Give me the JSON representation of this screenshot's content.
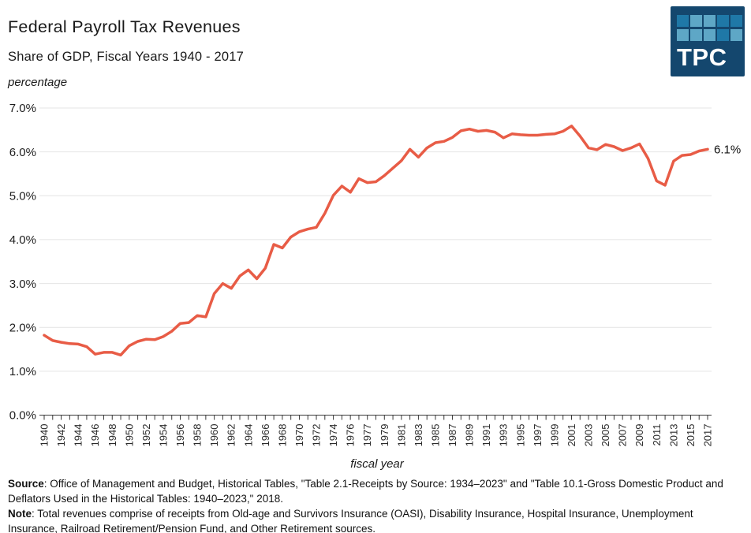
{
  "header": {
    "title": "Federal Payroll Tax Revenues",
    "subtitle": "Share of GDP, Fiscal Years 1940 - 2017"
  },
  "logo": {
    "text": "TPC",
    "bg_color": "#14476E",
    "square_colors": {
      "m": "#1F78A7",
      "l": "#5EA7C6"
    },
    "grid": [
      [
        "m",
        "l",
        "l",
        "m",
        "m"
      ],
      [
        "l",
        "l",
        "l",
        "m",
        "l"
      ]
    ]
  },
  "chart_data": {
    "type": "line",
    "title": "Federal Payroll Tax Revenues",
    "subtitle": "Share of GDP, Fiscal Years 1940 - 2017",
    "ylabel": "percentage",
    "xlabel": "fiscal year",
    "line_color": "#E85C46",
    "grid": "horizontal",
    "legend": "none",
    "ylim": [
      0,
      7
    ],
    "y_tick_labels": [
      "0.0%",
      "1.0%",
      "2.0%",
      "3.0%",
      "4.0%",
      "5.0%",
      "6.0%",
      "7.0%"
    ],
    "x": [
      "1940",
      "1941",
      "1942",
      "1943",
      "1944",
      "1945",
      "1946",
      "1947",
      "1948",
      "1949",
      "1950",
      "1951",
      "1952",
      "1953",
      "1954",
      "1955",
      "1956",
      "1957",
      "1958",
      "1959",
      "1960",
      "1961",
      "1962",
      "1963",
      "1964",
      "1965",
      "1966",
      "1967",
      "1968",
      "1969",
      "1970",
      "1971",
      "1972",
      "1973",
      "1974",
      "1975",
      "1976",
      "TQ",
      "1977",
      "1978",
      "1979",
      "1980",
      "1981",
      "1982",
      "1983",
      "1984",
      "1985",
      "1986",
      "1987",
      "1988",
      "1989",
      "1990",
      "1991",
      "1992",
      "1993",
      "1994",
      "1995",
      "1996",
      "1997",
      "1998",
      "1999",
      "2000",
      "2001",
      "2002",
      "2003",
      "2004",
      "2005",
      "2006",
      "2007",
      "2008",
      "2009",
      "2010",
      "2011",
      "2012",
      "2013",
      "2014",
      "2015",
      "2016",
      "2017"
    ],
    "values": [
      1.82,
      1.7,
      1.66,
      1.63,
      1.62,
      1.56,
      1.39,
      1.43,
      1.43,
      1.37,
      1.58,
      1.68,
      1.73,
      1.72,
      1.79,
      1.91,
      2.09,
      2.11,
      2.27,
      2.24,
      2.77,
      3.0,
      2.89,
      3.17,
      3.31,
      3.11,
      3.35,
      3.89,
      3.81,
      4.06,
      4.18,
      4.24,
      4.28,
      4.6,
      5.01,
      5.22,
      5.08,
      5.39,
      5.3,
      5.32,
      5.46,
      5.63,
      5.8,
      6.06,
      5.88,
      6.09,
      6.21,
      6.24,
      6.33,
      6.48,
      6.52,
      6.47,
      6.49,
      6.45,
      6.32,
      6.41,
      6.39,
      6.38,
      6.38,
      6.4,
      6.41,
      6.47,
      6.59,
      6.36,
      6.09,
      6.05,
      6.17,
      6.12,
      6.03,
      6.09,
      6.18,
      5.85,
      5.34,
      5.24,
      5.79,
      5.92,
      5.94,
      6.02,
      6.06
    ],
    "x_tick_labels_shown": [
      "1940",
      "1942",
      "1944",
      "1946",
      "1948",
      "1950",
      "1952",
      "1954",
      "1956",
      "1958",
      "1960",
      "1962",
      "1964",
      "1966",
      "1968",
      "1970",
      "1972",
      "1974",
      "1976",
      "1977",
      "1979",
      "1981",
      "1983",
      "1985",
      "1987",
      "1989",
      "1991",
      "1993",
      "1995",
      "1997",
      "1999",
      "2001",
      "2003",
      "2005",
      "2007",
      "2009",
      "2011",
      "2013",
      "2015",
      "2017"
    ],
    "end_label": "6.1%"
  },
  "footer": {
    "source_label": "Source",
    "source_text": ": Office of Management and Budget, Historical Tables, \"Table 2.1-Receipts by Source: 1934–2023\" and \"Table 10.1-Gross Domestic Product and Deflators Used in the Historical Tables: 1940–2023,\" 2018.",
    "note_label": "Note",
    "note_text": ": Total revenues comprise of receipts from Old-age and Survivors Insurance (OASI), Disability Insurance, Hospital Insurance, Unemployment Insurance, Railroad Retirement/Pension Fund, and Other Retirement sources."
  }
}
